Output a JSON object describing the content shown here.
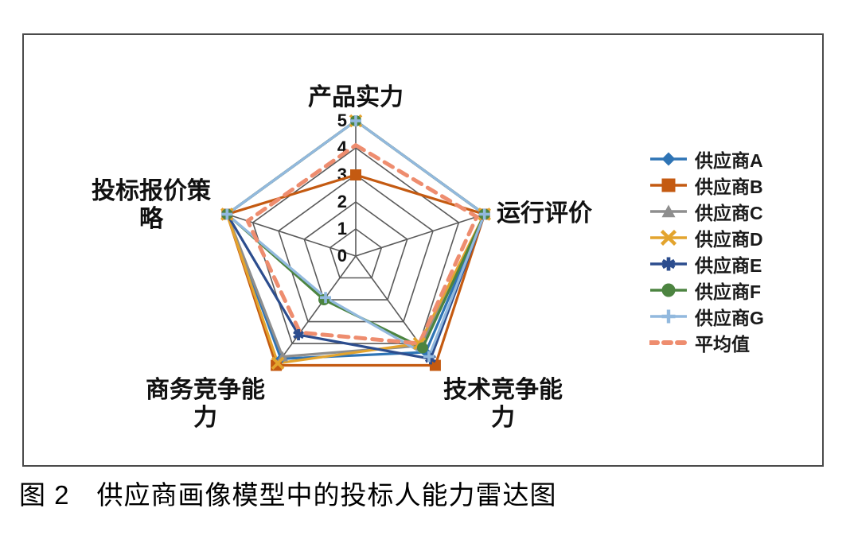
{
  "figure": {
    "caption": "图 2　供应商画像模型中的投标人能力雷达图"
  },
  "chart_data": {
    "type": "radar",
    "title": "",
    "categories": [
      "产品实力",
      "运行评价",
      "技术竞争能力",
      "商务竞争能力",
      "投标报价策略"
    ],
    "axis_label_lines": [
      [
        "产品实力"
      ],
      [
        "运行评价"
      ],
      [
        "技术竞争能",
        "力"
      ],
      [
        "商务竞争能",
        "力"
      ],
      [
        "投标报价策",
        "略"
      ]
    ],
    "r_ticks": [
      "0",
      "1",
      "2",
      "3",
      "4",
      "5"
    ],
    "r_range": [
      0,
      5
    ],
    "grid": true,
    "grid_color": "#5a5a5a",
    "legend_position": "right",
    "series": [
      {
        "name": "供应商A",
        "marker": "diamond",
        "color": "#2E74B5",
        "dashed": false,
        "values": [
          5,
          5,
          4.4,
          4.7,
          5
        ]
      },
      {
        "name": "供应商B",
        "marker": "square",
        "color": "#C45A11",
        "dashed": false,
        "values": [
          3,
          5,
          5.0,
          5.0,
          5
        ]
      },
      {
        "name": "供应商C",
        "marker": "triangle",
        "color": "#8E8E8E",
        "dashed": false,
        "values": [
          5,
          5,
          4.1,
          4.6,
          5
        ]
      },
      {
        "name": "供应商D",
        "marker": "x",
        "color": "#E3A42E",
        "dashed": false,
        "values": [
          5,
          5,
          4.0,
          4.9,
          5
        ]
      },
      {
        "name": "供应商E",
        "marker": "asterisk",
        "color": "#2C4D8E",
        "dashed": false,
        "values": [
          5,
          5,
          4.7,
          3.6,
          5
        ]
      },
      {
        "name": "供应商F",
        "marker": "circle",
        "color": "#4C8440",
        "dashed": false,
        "values": [
          5,
          5,
          4.2,
          2.0,
          5
        ]
      },
      {
        "name": "供应商G",
        "marker": "plus",
        "color": "#92B9DE",
        "dashed": false,
        "values": [
          5,
          5,
          4.6,
          1.9,
          5
        ]
      },
      {
        "name": "平均值",
        "marker": "none",
        "color": "#EE8D6F",
        "dashed": true,
        "values": [
          4.1,
          4.7,
          4.0,
          3.5,
          4.2
        ]
      }
    ]
  }
}
